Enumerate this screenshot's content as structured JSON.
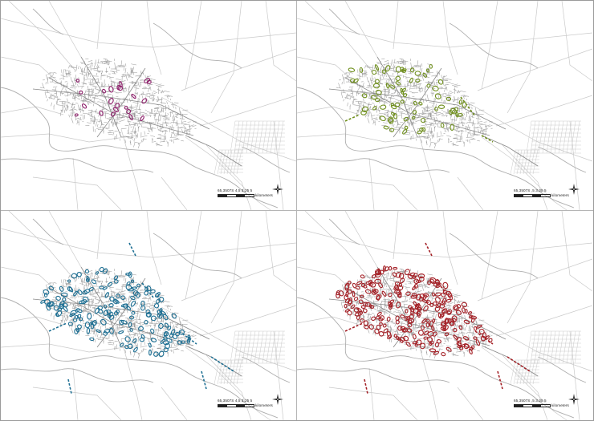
{
  "map": {
    "title": "",
    "panel_count": 4,
    "layout": "2x2 grid",
    "base_map": {
      "description_visible": "road network of a city on grey, surrounded by rural roads and rivers",
      "road_color": "#9c9c9c",
      "river_color": "#aeaeae"
    },
    "panels": [
      {
        "position": "top-left",
        "overlay_color": "#8e1f6b",
        "overlay_extent": "small",
        "scale_label": "65,3507S   4,5    3.25    5",
        "scale_unit": "kilometers"
      },
      {
        "position": "top-right",
        "overlay_color": "#6f8f1c",
        "overlay_extent": "medium",
        "scale_label": "65,3507S   ,5     3.25    5",
        "scale_unit": "kilometers"
      },
      {
        "position": "bottom-left",
        "overlay_color": "#1d6f93",
        "overlay_extent": "large",
        "scale_label": "65,3507S   4,5    3.25    5",
        "scale_unit": "kilometers"
      },
      {
        "position": "bottom-right",
        "overlay_color": "#a31f25",
        "overlay_extent": "very large",
        "scale_label": "65,3507S   ,5     3.25    5",
        "scale_unit": "kilometers"
      }
    ],
    "north_arrow": "north-arrow-icon"
  }
}
